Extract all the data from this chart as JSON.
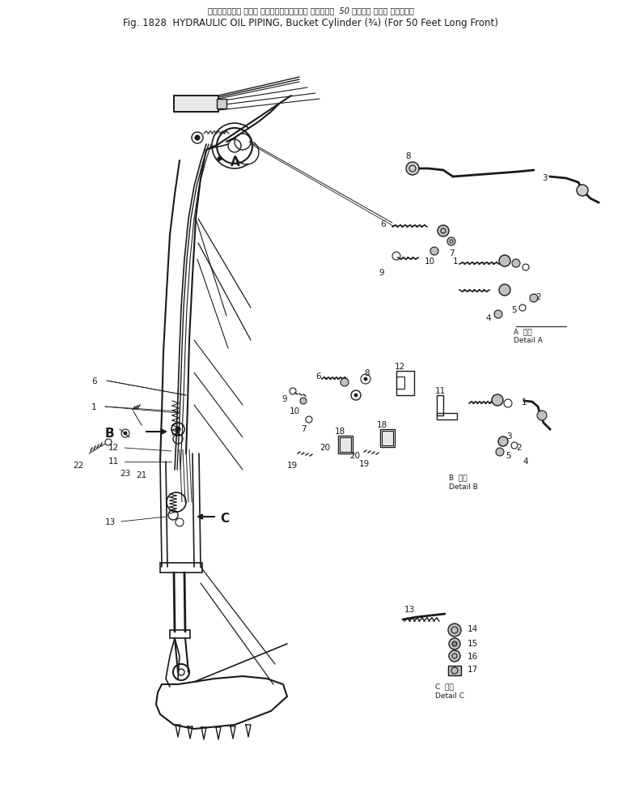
{
  "title_line1_jp": "バケット シリンダー（¾）（For 50 Feet Long Front）",
  "title_line2": "Fig. 1828  HYDRAULIC OIL PIPING, Bucket Cylinder (¾) (For 50 Feet Long Front)",
  "title_line1_raw": "ハイドロリック オイル パイピング、 バケット シリンダー  50 フィート ロング フロント用",
  "bg_color": "#ffffff",
  "line_color": "#1a1a1a",
  "fig_width": 7.69,
  "fig_height": 9.99,
  "dpi": 100
}
